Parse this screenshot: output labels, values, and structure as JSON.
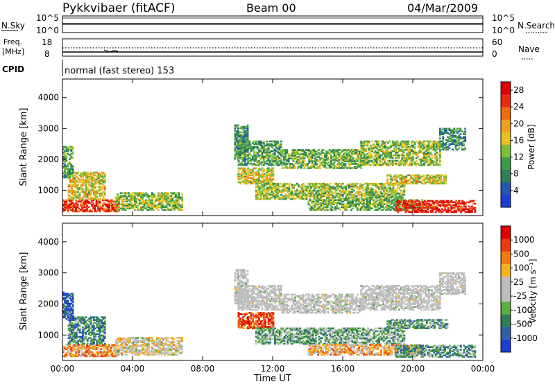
{
  "header": {
    "station": "Pykkvibaer (fitACF)",
    "beam": "Beam 00",
    "date": "04/Mar/2009"
  },
  "sky_panel": {
    "label": "N.Sky",
    "left_ticks": [
      "10^5",
      "10^0"
    ],
    "right_label": "N.Search",
    "right_ticks": [
      "10^5",
      "10^0"
    ]
  },
  "freq_panel": {
    "label_line1": "Freq.",
    "label_line2": "[MHz]",
    "left_ticks": [
      "18",
      "8"
    ],
    "right_label": "Nave",
    "right_ticks": [
      "60",
      "0"
    ]
  },
  "cpid_panel": {
    "label": "CPID",
    "text": "normal (fast stereo) 153"
  },
  "colors": {
    "power_scale": [
      "#1f3cd6",
      "#2555b0",
      "#2f7d57",
      "#3c9a4a",
      "#7cbf3a",
      "#e8c21a",
      "#f0a020",
      "#ef6a10",
      "#e82a10",
      "#e00000"
    ],
    "velocity_scale": [
      "#1f3cd6",
      "#3060a8",
      "#2f7d57",
      "#5cae3c",
      "#bdbdbd",
      "#bdbdbd",
      "#f5b21e",
      "#f07a10",
      "#ea3a10",
      "#e00000"
    ]
  },
  "chart_data": [
    {
      "type": "heatmap",
      "title": "Power",
      "xlabel": "",
      "ylabel": "Slant Range [km]",
      "x_ticks": [
        "00:00",
        "04:00",
        "08:00",
        "12:00",
        "16:00",
        "20:00",
        "00:00"
      ],
      "y_ticks": [
        1000,
        2000,
        3000,
        4000
      ],
      "ylim": [
        180,
        4600
      ],
      "xlim_hours": [
        0,
        24
      ],
      "colorbar": {
        "label": "Power [dB]",
        "ticks": [
          4,
          8,
          12,
          16,
          20,
          24,
          28
        ],
        "range": [
          0,
          30
        ]
      },
      "regions": [
        {
          "t0": 0.0,
          "t1": 3.2,
          "r0": 300,
          "r1": 700,
          "level": 0.85
        },
        {
          "t0": 0.3,
          "t1": 2.4,
          "r0": 700,
          "r1": 1600,
          "level": 0.55
        },
        {
          "t0": 0.0,
          "t1": 0.6,
          "r0": 1400,
          "r1": 2400,
          "level": 0.35
        },
        {
          "t0": 3.0,
          "t1": 6.8,
          "r0": 350,
          "r1": 900,
          "level": 0.45
        },
        {
          "t0": 9.8,
          "t1": 10.6,
          "r0": 2000,
          "r1": 3100,
          "level": 0.3
        },
        {
          "t0": 10.0,
          "t1": 12.5,
          "r0": 1800,
          "r1": 2600,
          "level": 0.35
        },
        {
          "t0": 12.5,
          "t1": 17.0,
          "r0": 1700,
          "r1": 2300,
          "level": 0.4
        },
        {
          "t0": 17.0,
          "t1": 21.5,
          "r0": 1800,
          "r1": 2600,
          "level": 0.45
        },
        {
          "t0": 21.5,
          "t1": 23.0,
          "r0": 2300,
          "r1": 3000,
          "level": 0.3
        },
        {
          "t0": 10.0,
          "t1": 12.0,
          "r0": 1200,
          "r1": 1700,
          "level": 0.55
        },
        {
          "t0": 11.0,
          "t1": 19.5,
          "r0": 700,
          "r1": 1200,
          "level": 0.45
        },
        {
          "t0": 14.0,
          "t1": 20.5,
          "r0": 350,
          "r1": 700,
          "level": 0.4
        },
        {
          "t0": 18.5,
          "t1": 22.0,
          "r0": 1200,
          "r1": 1500,
          "level": 0.55
        },
        {
          "t0": 19.0,
          "t1": 23.5,
          "r0": 280,
          "r1": 650,
          "level": 0.9
        }
      ]
    },
    {
      "type": "heatmap",
      "title": "Velocity",
      "xlabel": "Time UT",
      "ylabel": "Slant Range [km]",
      "x_ticks": [
        "00:00",
        "04:00",
        "08:00",
        "12:00",
        "16:00",
        "20:00",
        "00:00"
      ],
      "y_ticks": [
        1000,
        2000,
        3000,
        4000
      ],
      "ylim": [
        180,
        4600
      ],
      "xlim_hours": [
        0,
        24
      ],
      "colorbar": {
        "label": "Velocity [m s⁻¹]",
        "ticks": [
          1000,
          500,
          100,
          25,
          -25,
          -100,
          -500,
          -1000
        ]
      },
      "regions": [
        {
          "t0": 0.0,
          "t1": 3.2,
          "r0": 300,
          "r1": 700,
          "level": 0.72
        },
        {
          "t0": 0.3,
          "t1": 2.4,
          "r0": 700,
          "r1": 1600,
          "level": 0.25
        },
        {
          "t0": 0.0,
          "t1": 0.6,
          "r0": 1500,
          "r1": 2400,
          "level": 0.1
        },
        {
          "t0": 3.0,
          "t1": 6.8,
          "r0": 350,
          "r1": 900,
          "level": 0.55
        },
        {
          "t0": 9.8,
          "t1": 10.6,
          "r0": 2000,
          "r1": 3100,
          "level": 0.48
        },
        {
          "t0": 10.0,
          "t1": 12.5,
          "r0": 1800,
          "r1": 2600,
          "level": 0.48
        },
        {
          "t0": 12.5,
          "t1": 17.0,
          "r0": 1700,
          "r1": 2300,
          "level": 0.48
        },
        {
          "t0": 17.0,
          "t1": 21.5,
          "r0": 1800,
          "r1": 2600,
          "level": 0.48
        },
        {
          "t0": 21.5,
          "t1": 23.0,
          "r0": 2300,
          "r1": 3000,
          "level": 0.48
        },
        {
          "t0": 10.0,
          "t1": 12.0,
          "r0": 1200,
          "r1": 1700,
          "level": 0.85
        },
        {
          "t0": 11.0,
          "t1": 19.5,
          "r0": 700,
          "r1": 1200,
          "level": 0.35
        },
        {
          "t0": 14.0,
          "t1": 20.5,
          "r0": 350,
          "r1": 700,
          "level": 0.65
        },
        {
          "t0": 18.5,
          "t1": 22.0,
          "r0": 1200,
          "r1": 1500,
          "level": 0.3
        },
        {
          "t0": 19.0,
          "t1": 23.5,
          "r0": 280,
          "r1": 650,
          "level": 0.3
        }
      ]
    }
  ]
}
